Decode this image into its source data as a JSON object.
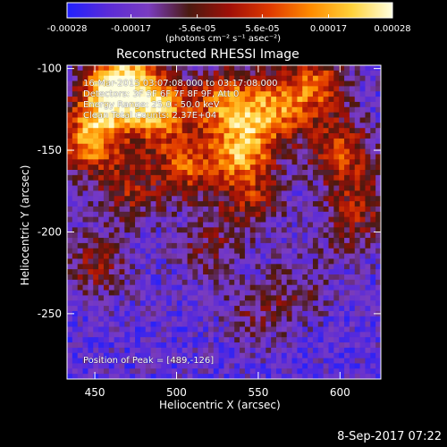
{
  "colorbar": {
    "ticks": [
      "-0.00028",
      "-0.00017",
      "-5.6e-05",
      "5.6e-05",
      "0.00017",
      "0.00028"
    ],
    "tick_values": [
      -0.00028,
      -0.00017,
      -5.6e-05,
      5.6e-05,
      0.00017,
      0.00028
    ],
    "range": [
      -0.00028,
      0.00028
    ],
    "unit_label": "(photons cm⁻² s⁻¹ asec⁻²)",
    "colors": [
      "#2020ff",
      "#5a2bd8",
      "#7a3cc0",
      "#4a1a10",
      "#a01008",
      "#e03a00",
      "#ff8c00",
      "#ffd23a",
      "#ffffe0"
    ]
  },
  "chart_data": {
    "type": "heatmap",
    "title": "Reconstructed RHESSI Image",
    "xlabel": "Heliocentric X (arcsec)",
    "ylabel": "Heliocentric Y (arcsec)",
    "xlim": [
      433,
      625
    ],
    "ylim": [
      -290,
      -98
    ],
    "xticks": [
      450,
      500,
      550,
      600
    ],
    "yticks": [
      -100,
      -150,
      -200,
      -250
    ],
    "peak": [
      489,
      -126
    ],
    "annotations": [
      "16-Mar-2015 03:07:08.000 to 03:17:08.000",
      "Detectors: 3F 5F 6F 7F 8F 9F, Att 0",
      "Energy Range: 25.0 - 50.0 keV",
      "Clean    Total Counts: 2.37E+04"
    ],
    "peak_label": "Position of Peak = [489,-126]",
    "blobs": [
      {
        "x": 458,
        "y": -118,
        "a": 1.0
      },
      {
        "x": 447,
        "y": -145,
        "a": 0.9
      },
      {
        "x": 470,
        "y": -105,
        "a": 0.8
      },
      {
        "x": 489,
        "y": -126,
        "a": 1.0
      },
      {
        "x": 530,
        "y": -120,
        "a": 0.85
      },
      {
        "x": 540,
        "y": -150,
        "a": 0.95
      },
      {
        "x": 560,
        "y": -125,
        "a": 0.8
      },
      {
        "x": 585,
        "y": -110,
        "a": 0.75
      },
      {
        "x": 600,
        "y": -150,
        "a": 0.7
      },
      {
        "x": 505,
        "y": -160,
        "a": 0.7
      },
      {
        "x": 470,
        "y": -175,
        "a": 0.5
      },
      {
        "x": 450,
        "y": -220,
        "a": 0.45
      },
      {
        "x": 520,
        "y": -210,
        "a": 0.35
      },
      {
        "x": 550,
        "y": -250,
        "a": 0.3
      },
      {
        "x": 605,
        "y": -200,
        "a": 0.3
      },
      {
        "x": 575,
        "y": -235,
        "a": 0.25
      },
      {
        "x": 612,
        "y": -180,
        "a": 0.4
      },
      {
        "x": 545,
        "y": -180,
        "a": 0.5
      }
    ]
  },
  "footer": {
    "timestamp": "8-Sep-2017 07:22"
  }
}
